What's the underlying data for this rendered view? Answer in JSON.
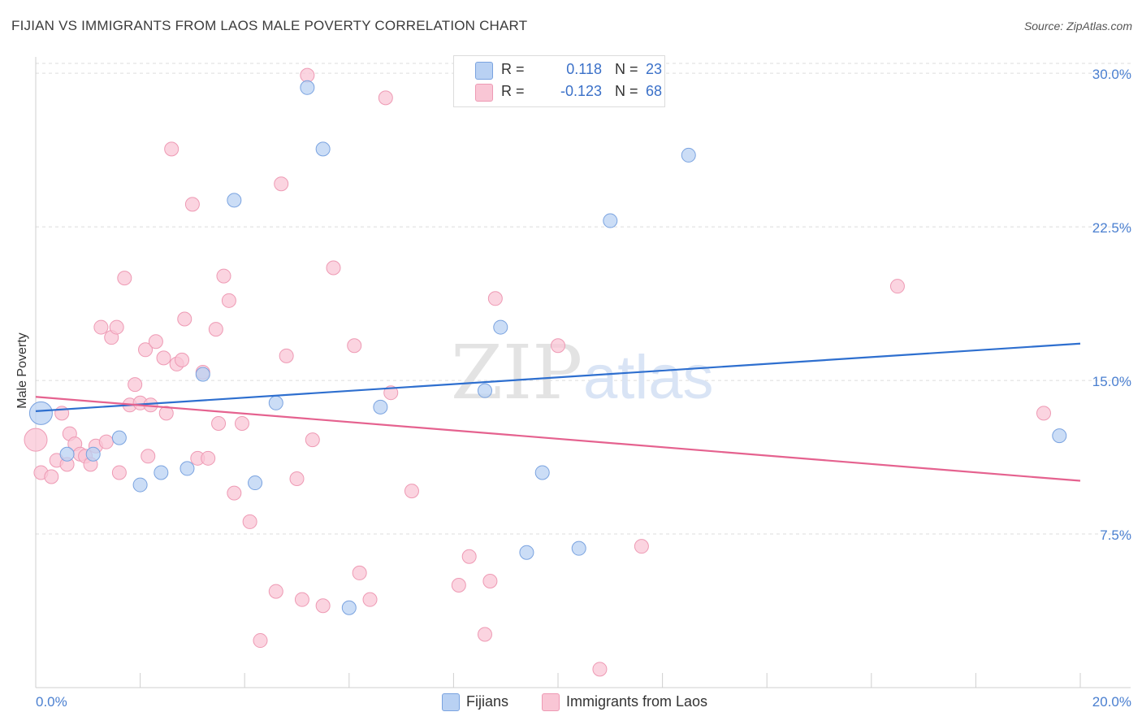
{
  "title": "FIJIAN VS IMMIGRANTS FROM LAOS MALE POVERTY CORRELATION CHART",
  "source": "Source: ZipAtlas.com",
  "watermark": {
    "zip": "ZIP",
    "atlas": "atlas"
  },
  "colors": {
    "fijians_fill": "#b9d1f3",
    "fijians_stroke": "#7aa3e0",
    "fijians_line": "#2e6fcf",
    "laos_fill": "#f9c6d5",
    "laos_stroke": "#ee9ab4",
    "laos_line": "#e5628f",
    "tick_text": "#4a7fd0",
    "grid": "#dddddd"
  },
  "legend": {
    "fijians": {
      "r_label": "R =",
      "r_value": "0.118",
      "n_label": "N =",
      "n_value": "23"
    },
    "laos": {
      "r_label": "R =",
      "r_value": "-0.123",
      "n_label": "N =",
      "n_value": "68"
    }
  },
  "chart_data": {
    "type": "scatter",
    "title": "FIJIAN VS IMMIGRANTS FROM LAOS MALE POVERTY CORRELATION CHART",
    "xlabel": "",
    "ylabel": "Male Poverty",
    "xlim": [
      0,
      20
    ],
    "ylim": [
      0,
      30.8
    ],
    "x_tick_labels": [
      "0.0%",
      "20.0%"
    ],
    "y_ticks": [
      7.5,
      15.0,
      22.5,
      30.0
    ],
    "y_tick_labels": [
      "7.5%",
      "15.0%",
      "22.5%",
      "30.0%"
    ],
    "grid": true,
    "legend_position": "top-center",
    "series": [
      {
        "name": "Fijians",
        "trend": {
          "x": [
            0,
            20
          ],
          "y": [
            13.5,
            16.8
          ]
        },
        "points": [
          {
            "x": 0.1,
            "y": 13.4,
            "big": true
          },
          {
            "x": 1.1,
            "y": 11.4
          },
          {
            "x": 1.6,
            "y": 12.2
          },
          {
            "x": 2.0,
            "y": 9.9
          },
          {
            "x": 2.4,
            "y": 10.5
          },
          {
            "x": 2.9,
            "y": 10.7
          },
          {
            "x": 3.2,
            "y": 15.3
          },
          {
            "x": 3.8,
            "y": 23.8
          },
          {
            "x": 4.2,
            "y": 10.0
          },
          {
            "x": 4.6,
            "y": 13.9
          },
          {
            "x": 5.2,
            "y": 29.3
          },
          {
            "x": 5.5,
            "y": 26.3
          },
          {
            "x": 6.0,
            "y": 3.9
          },
          {
            "x": 6.6,
            "y": 13.7
          },
          {
            "x": 8.6,
            "y": 14.5
          },
          {
            "x": 8.9,
            "y": 17.6
          },
          {
            "x": 9.4,
            "y": 6.6
          },
          {
            "x": 9.7,
            "y": 10.5
          },
          {
            "x": 10.4,
            "y": 6.8
          },
          {
            "x": 11.0,
            "y": 22.8
          },
          {
            "x": 12.5,
            "y": 26.0
          },
          {
            "x": 19.6,
            "y": 12.3
          },
          {
            "x": 0.6,
            "y": 11.4
          }
        ]
      },
      {
        "name": "Immigrants from Laos",
        "trend": {
          "x": [
            0,
            20
          ],
          "y": [
            14.2,
            10.1
          ]
        },
        "points": [
          {
            "x": 0.0,
            "y": 12.1,
            "big": true
          },
          {
            "x": 0.1,
            "y": 10.5
          },
          {
            "x": 0.3,
            "y": 10.3
          },
          {
            "x": 0.4,
            "y": 11.1
          },
          {
            "x": 0.5,
            "y": 13.4
          },
          {
            "x": 0.6,
            "y": 10.9
          },
          {
            "x": 0.65,
            "y": 12.4
          },
          {
            "x": 0.75,
            "y": 11.9
          },
          {
            "x": 0.85,
            "y": 11.4
          },
          {
            "x": 0.95,
            "y": 11.3
          },
          {
            "x": 1.05,
            "y": 10.9
          },
          {
            "x": 1.15,
            "y": 11.8
          },
          {
            "x": 1.25,
            "y": 17.6
          },
          {
            "x": 1.35,
            "y": 12.0
          },
          {
            "x": 1.45,
            "y": 17.1
          },
          {
            "x": 1.55,
            "y": 17.6
          },
          {
            "x": 1.6,
            "y": 10.5
          },
          {
            "x": 1.7,
            "y": 20.0
          },
          {
            "x": 1.8,
            "y": 13.8
          },
          {
            "x": 1.9,
            "y": 14.8
          },
          {
            "x": 2.0,
            "y": 13.9
          },
          {
            "x": 2.1,
            "y": 16.5
          },
          {
            "x": 2.2,
            "y": 13.8
          },
          {
            "x": 2.3,
            "y": 16.9
          },
          {
            "x": 2.45,
            "y": 16.1
          },
          {
            "x": 2.5,
            "y": 13.4
          },
          {
            "x": 2.6,
            "y": 26.3
          },
          {
            "x": 2.7,
            "y": 15.8
          },
          {
            "x": 2.8,
            "y": 16.0
          },
          {
            "x": 2.85,
            "y": 18.0
          },
          {
            "x": 3.0,
            "y": 23.6
          },
          {
            "x": 3.1,
            "y": 11.2
          },
          {
            "x": 3.2,
            "y": 15.4
          },
          {
            "x": 3.3,
            "y": 11.2
          },
          {
            "x": 3.45,
            "y": 17.5
          },
          {
            "x": 3.5,
            "y": 12.9
          },
          {
            "x": 3.6,
            "y": 20.1
          },
          {
            "x": 3.7,
            "y": 18.9
          },
          {
            "x": 3.8,
            "y": 9.5
          },
          {
            "x": 3.95,
            "y": 12.9
          },
          {
            "x": 4.1,
            "y": 8.1
          },
          {
            "x": 4.3,
            "y": 2.3
          },
          {
            "x": 4.6,
            "y": 4.7
          },
          {
            "x": 4.7,
            "y": 24.6
          },
          {
            "x": 4.8,
            "y": 16.2
          },
          {
            "x": 5.0,
            "y": 10.2
          },
          {
            "x": 5.1,
            "y": 4.3
          },
          {
            "x": 5.2,
            "y": 29.9
          },
          {
            "x": 5.3,
            "y": 12.1
          },
          {
            "x": 5.5,
            "y": 4.0
          },
          {
            "x": 5.7,
            "y": 20.5
          },
          {
            "x": 6.1,
            "y": 16.7
          },
          {
            "x": 6.2,
            "y": 5.6
          },
          {
            "x": 6.4,
            "y": 4.3
          },
          {
            "x": 6.7,
            "y": 28.8
          },
          {
            "x": 6.8,
            "y": 14.4
          },
          {
            "x": 7.2,
            "y": 9.6
          },
          {
            "x": 8.1,
            "y": 5.0
          },
          {
            "x": 8.3,
            "y": 6.4
          },
          {
            "x": 8.6,
            "y": 2.6
          },
          {
            "x": 8.7,
            "y": 5.2
          },
          {
            "x": 8.8,
            "y": 19.0
          },
          {
            "x": 10.0,
            "y": 16.7
          },
          {
            "x": 10.8,
            "y": 0.9
          },
          {
            "x": 11.6,
            "y": 6.9
          },
          {
            "x": 16.5,
            "y": 19.6
          },
          {
            "x": 19.3,
            "y": 13.4
          },
          {
            "x": 2.15,
            "y": 11.3
          }
        ]
      }
    ]
  },
  "bottom_legend": {
    "fijians": "Fijians",
    "laos": "Immigrants from Laos"
  }
}
